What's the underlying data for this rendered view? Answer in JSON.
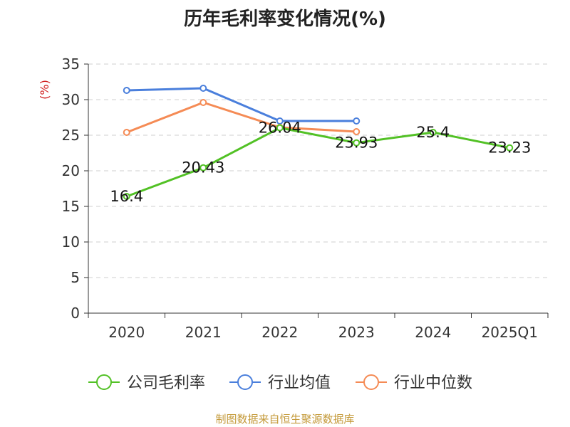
{
  "chart_data": {
    "type": "line",
    "title": "历年毛利率变化情况(%)",
    "ylabel": "(%)",
    "xlabel": "",
    "ylim": [
      0,
      35
    ],
    "yticks": [
      0,
      5,
      10,
      15,
      20,
      25,
      30,
      35
    ],
    "categories": [
      "2020",
      "2021",
      "2022",
      "2023",
      "2024",
      "2025Q1"
    ],
    "grid": true,
    "legend_position": "bottom",
    "series": [
      {
        "name": "公司毛利率",
        "color": "#52c125",
        "values": [
          16.4,
          20.43,
          26.04,
          23.93,
          25.4,
          23.23
        ],
        "labels": [
          "16.4",
          "20.43",
          "26.04",
          "23.93",
          "25.4",
          "23.23"
        ]
      },
      {
        "name": "行业均值",
        "color": "#4a7fdc",
        "values": [
          31.3,
          31.6,
          27.0,
          27.0,
          null,
          null
        ]
      },
      {
        "name": "行业中位数",
        "color": "#f58b55",
        "values": [
          25.4,
          29.6,
          26.1,
          25.5,
          null,
          null
        ]
      }
    ]
  },
  "footer": {
    "source": "制图数据来自恒生聚源数据库"
  }
}
